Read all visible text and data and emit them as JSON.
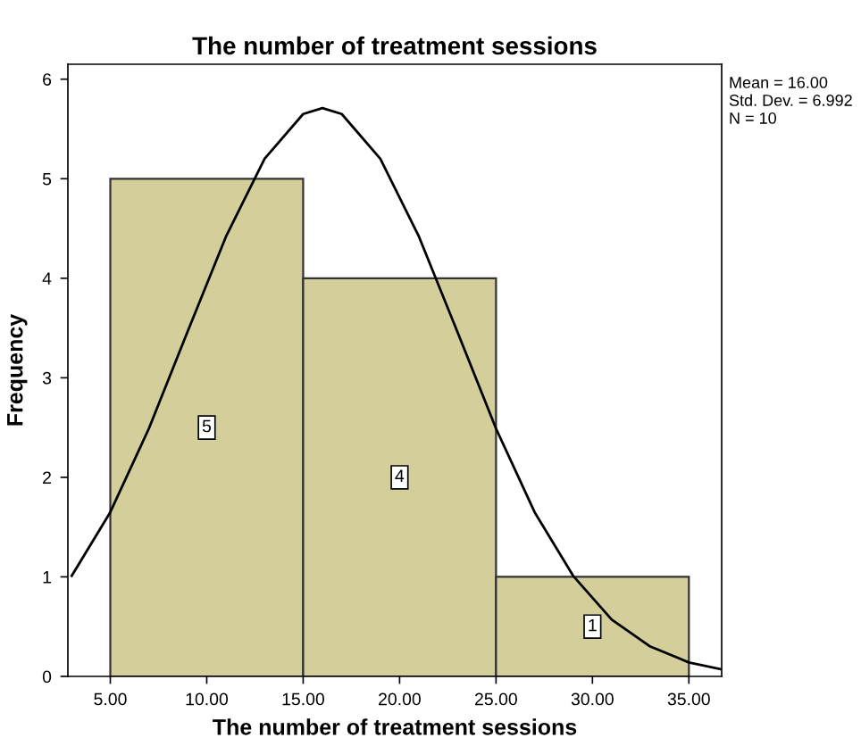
{
  "chart_data": {
    "type": "histogram",
    "title": "The number of treatment sessions",
    "xlabel": "The number of treatment sessions",
    "ylabel": "Frequency",
    "bins": [
      5,
      15,
      25,
      35
    ],
    "values": [
      5,
      4,
      1
    ],
    "color": "#d3ce9a",
    "value_labels": [
      "5",
      "4",
      "1"
    ],
    "series": [
      {
        "type": "line",
        "color": "#000000",
        "x": [
          3,
          5,
          7,
          9,
          11,
          13,
          15,
          16,
          17,
          19,
          21,
          23,
          25,
          27,
          29,
          31,
          33,
          35,
          36.7
        ],
        "values": [
          1.01,
          1.65,
          2.49,
          3.46,
          4.42,
          5.2,
          5.65,
          5.71,
          5.65,
          5.2,
          4.42,
          3.46,
          2.49,
          1.65,
          1.01,
          0.57,
          0.3,
          0.14,
          0.07
        ]
      }
    ],
    "xlim": [
      2.8,
      36.7
    ],
    "ylim": [
      0,
      6.15
    ],
    "xticks": [
      {
        "value": 5,
        "label": "5.00"
      },
      {
        "value": 10,
        "label": "10.00"
      },
      {
        "value": 15,
        "label": "15.00"
      },
      {
        "value": 20,
        "label": "20.00"
      },
      {
        "value": 25,
        "label": "25.00"
      },
      {
        "value": 30,
        "label": "30.00"
      },
      {
        "value": 35,
        "label": "35.00"
      }
    ],
    "yticks": [
      0,
      1,
      2,
      3,
      4,
      5,
      6
    ],
    "annotations": [
      "Mean = 16.00",
      "Std. Dev. = 6.992",
      "N = 10"
    ]
  }
}
